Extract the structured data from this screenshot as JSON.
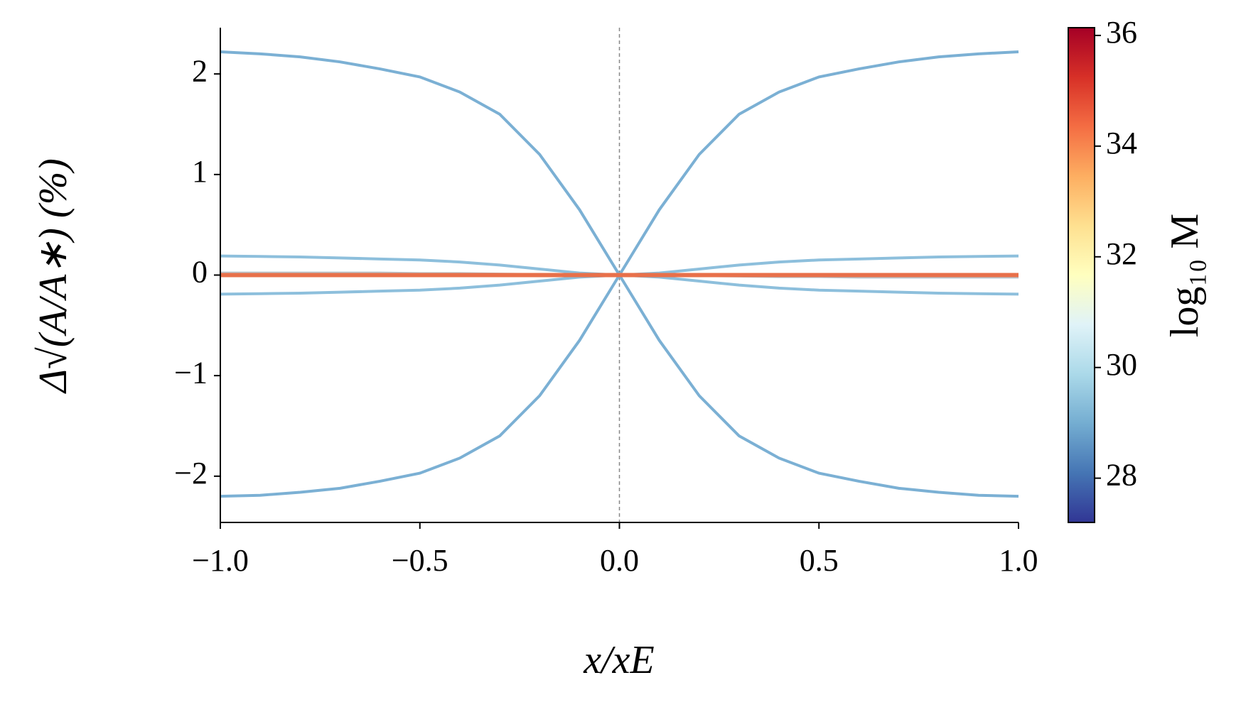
{
  "chart_data": {
    "type": "line",
    "x": [
      -1,
      -0.9,
      -0.8,
      -0.7,
      -0.6,
      -0.5,
      -0.4,
      -0.3,
      -0.2,
      -0.1,
      0,
      0.1,
      0.2,
      0.3,
      0.4,
      0.5,
      0.6,
      0.7,
      0.8,
      0.9,
      1
    ],
    "series": [
      {
        "color": "#7bb0d4",
        "values": [
          2.22,
          2.2,
          2.17,
          2.12,
          2.05,
          1.97,
          1.82,
          1.6,
          1.2,
          0.65,
          0,
          -0.65,
          -1.2,
          -1.6,
          -1.82,
          -1.97,
          -2.05,
          -2.12,
          -2.16,
          -2.19,
          -2.2
        ]
      },
      {
        "color": "#7bb0d4",
        "values": [
          -2.2,
          -2.19,
          -2.16,
          -2.12,
          -2.05,
          -1.97,
          -1.82,
          -1.6,
          -1.2,
          -0.65,
          0,
          0.65,
          1.2,
          1.6,
          1.82,
          1.97,
          2.05,
          2.12,
          2.17,
          2.2,
          2.22
        ]
      },
      {
        "color": "#8dbfdc",
        "values": [
          0.19,
          0.185,
          0.18,
          0.17,
          0.16,
          0.15,
          0.13,
          0.1,
          0.06,
          0.02,
          0,
          -0.02,
          -0.06,
          -0.1,
          -0.13,
          -0.15,
          -0.16,
          -0.17,
          -0.18,
          -0.185,
          -0.19
        ]
      },
      {
        "color": "#8dbfdc",
        "values": [
          -0.19,
          -0.185,
          -0.18,
          -0.17,
          -0.16,
          -0.15,
          -0.13,
          -0.1,
          -0.06,
          -0.02,
          0,
          0.02,
          0.06,
          0.1,
          0.13,
          0.15,
          0.16,
          0.17,
          0.18,
          0.185,
          0.19
        ]
      },
      {
        "color": "#b8c4cc",
        "values": [
          0.02,
          0.02,
          0.02,
          0.02,
          0.02,
          0.015,
          0.015,
          0.01,
          0.005,
          0.002,
          0,
          -0.002,
          -0.005,
          -0.01,
          -0.015,
          -0.015,
          -0.02,
          -0.02,
          -0.02,
          -0.02,
          -0.02
        ]
      },
      {
        "color": "#e8704a",
        "values": [
          0,
          0,
          0,
          0,
          0,
          0,
          0,
          0,
          0,
          0,
          0,
          0,
          0,
          0,
          0,
          0,
          0,
          0,
          0,
          0,
          0
        ]
      }
    ],
    "xlabel": "x/xE",
    "ylabel": "Δ√(A/A∗) (%)",
    "xlim": [
      -1,
      1
    ],
    "xticks": [
      {
        "value": -1,
        "label": "−1.0"
      },
      {
        "value": -0.5,
        "label": "−0.5"
      },
      {
        "value": 0,
        "label": "0.0"
      },
      {
        "value": 0.5,
        "label": "0.5"
      },
      {
        "value": 1,
        "label": "1.0"
      }
    ],
    "ylim": [
      -2.46,
      2.46
    ],
    "yticks": [
      {
        "value": -2,
        "label": "−2"
      },
      {
        "value": -1,
        "label": "−1"
      },
      0,
      1,
      2
    ],
    "vline": 0,
    "colorbar": {
      "label": "log₁₀ M",
      "lim": [
        27.2,
        36.14
      ],
      "ticks": [
        28,
        30,
        32,
        34,
        36
      ],
      "colors": [
        "#313695",
        "#4575b4",
        "#74add1",
        "#abd9e9",
        "#e0f3f8",
        "#ffffbf",
        "#fee090",
        "#fdae61",
        "#f46d43",
        "#d73027",
        "#a50026"
      ]
    }
  }
}
